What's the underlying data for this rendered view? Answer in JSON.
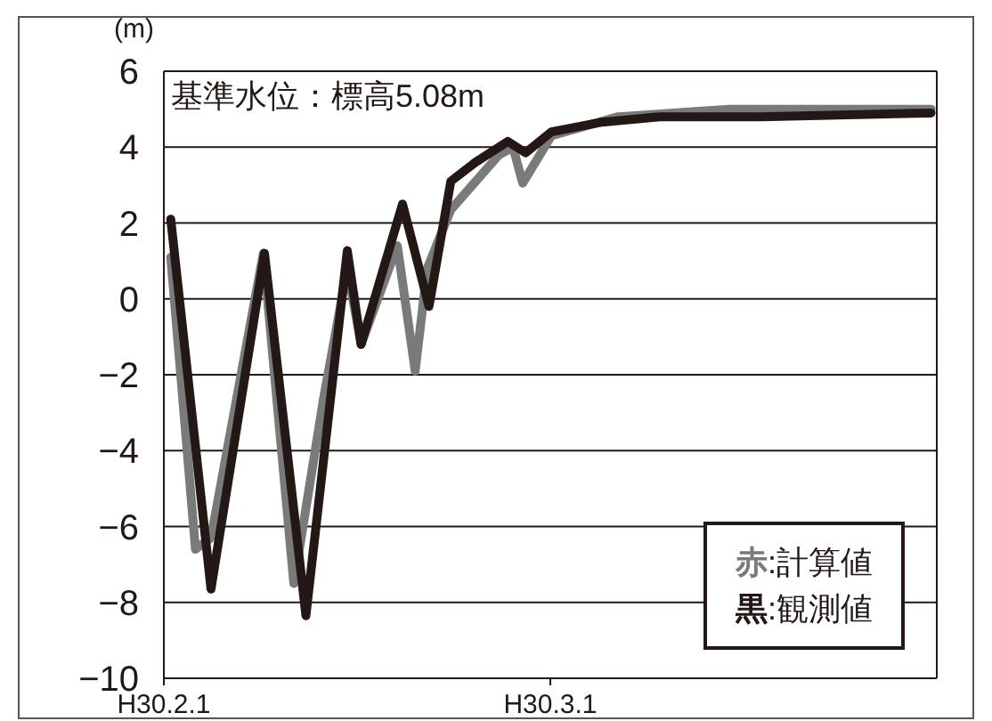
{
  "chart_data": {
    "type": "line",
    "ylabel": "(m)",
    "annotations": [
      "基準水位：標高5.08m"
    ],
    "xlim": [
      "--02-01",
      "--03-29"
    ],
    "xticks": [
      {
        "value": "--02-01",
        "label": "H30.2.1"
      },
      {
        "value": "--03-01",
        "label": "H30.3.1"
      }
    ],
    "ylim": [
      -10,
      6
    ],
    "yticks": [
      -10,
      -8,
      -6,
      -4,
      -2,
      0,
      2,
      4,
      6
    ],
    "grid": "y",
    "legend": "bottom right",
    "marker": "none",
    "line_style": "solid",
    "series": [
      {
        "name": "赤:計算値",
        "color": "#7a7a7a",
        "x": [
          "--02-01T12:00",
          "--02-03T07:00",
          "--02-04T10:00",
          "--02-08T05:00",
          "--02-10T10:00",
          "--02-12T14:00",
          "--02-14T07:00",
          "--02-15T07:00",
          "--02-17T22:00",
          "--02-19T05:00",
          "--02-20T02:00",
          "--02-21T19:00",
          "--02-25T07:00",
          "--02-26T07:00",
          "--02-27T00:00",
          "--03-01T02:00",
          "--03-05T22:00",
          "--03-14T00:00",
          "--03-28T14:00"
        ],
        "values": [
          1.1,
          -6.6,
          -6.3,
          1.2,
          -7.5,
          -2.6,
          0.8,
          -1.2,
          1.4,
          -1.9,
          0.8,
          2.35,
          3.8,
          4,
          3.05,
          4.3,
          4.8,
          5,
          5
        ]
      },
      {
        "name": "黒:観測値",
        "color": "#231815",
        "x": [
          "--02-01T12:00",
          "--02-04T10:00",
          "--02-08T07:00",
          "--02-11T07:00",
          "--02-14T07:00",
          "--02-15T07:00",
          "--02-18T07:00",
          "--02-20T05:00",
          "--02-21T19:00",
          "--02-23T14:00",
          "--02-25T07:00",
          "--02-25T22:00",
          "--02-27T05:00",
          "--03-01T02:00",
          "--03-04T14:00",
          "--03-08T22:00",
          "--03-16T05:00",
          "--03-28T14:00"
        ],
        "values": [
          2.1,
          -7.65,
          1.2,
          -8.35,
          1.27,
          -1.2,
          2.5,
          -0.2,
          3.1,
          3.6,
          4,
          4.15,
          3.85,
          4.4,
          4.65,
          4.8,
          4.8,
          4.9
        ]
      }
    ]
  }
}
